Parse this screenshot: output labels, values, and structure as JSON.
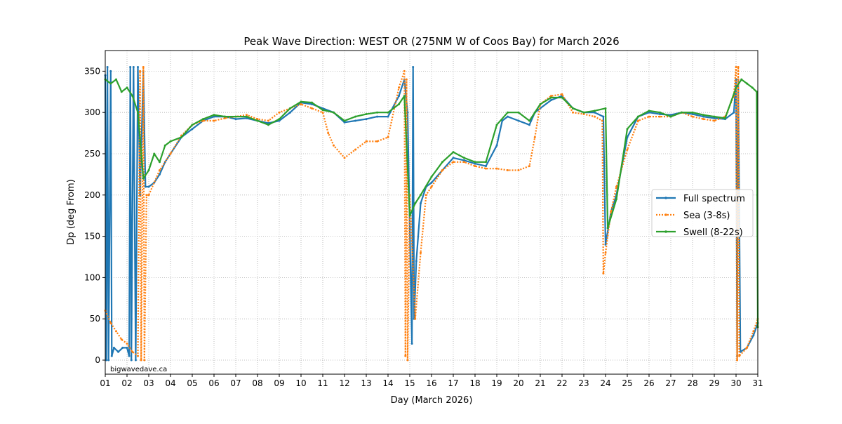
{
  "chart_data": {
    "type": "line",
    "title": "Peak Wave Direction: WEST OR (275NM W of Coos Bay) for March 2026",
    "xlabel": "Day (March 2026)",
    "ylabel": "Dp (deg From)",
    "xlim": [
      1,
      31
    ],
    "ylim": [
      -17,
      375
    ],
    "xticks": [
      "01",
      "02",
      "03",
      "04",
      "05",
      "06",
      "07",
      "08",
      "09",
      "10",
      "11",
      "12",
      "13",
      "14",
      "15",
      "16",
      "17",
      "18",
      "19",
      "20",
      "21",
      "22",
      "23",
      "24",
      "25",
      "26",
      "27",
      "28",
      "29",
      "30",
      "31"
    ],
    "yticks": [
      0,
      50,
      100,
      150,
      200,
      250,
      300,
      350
    ],
    "grid": true,
    "legend_position": "center-right",
    "watermark": "bigwavedave.ca",
    "series": [
      {
        "name": "Full spectrum",
        "color": "#1f77b4",
        "style": "solid",
        "points": [
          [
            1.0,
            345
          ],
          [
            1.05,
            0
          ],
          [
            1.1,
            355
          ],
          [
            1.15,
            0
          ],
          [
            1.25,
            350
          ],
          [
            1.3,
            5
          ],
          [
            1.4,
            15
          ],
          [
            1.6,
            10
          ],
          [
            1.8,
            15
          ],
          [
            2.0,
            15
          ],
          [
            2.1,
            5
          ],
          [
            2.15,
            355
          ],
          [
            2.2,
            0
          ],
          [
            2.3,
            355
          ],
          [
            2.4,
            0
          ],
          [
            2.5,
            355
          ],
          [
            2.6,
            200
          ],
          [
            2.75,
            350
          ],
          [
            2.85,
            210
          ],
          [
            3.0,
            210
          ],
          [
            3.25,
            215
          ],
          [
            3.5,
            225
          ],
          [
            3.75,
            240
          ],
          [
            4.0,
            250
          ],
          [
            4.5,
            270
          ],
          [
            5,
            280
          ],
          [
            5.5,
            290
          ],
          [
            6,
            295
          ],
          [
            6.5,
            295
          ],
          [
            7,
            292
          ],
          [
            7.5,
            293
          ],
          [
            8,
            290
          ],
          [
            8.5,
            287
          ],
          [
            9,
            290
          ],
          [
            9.5,
            300
          ],
          [
            10,
            312
          ],
          [
            10.5,
            310
          ],
          [
            11,
            305
          ],
          [
            11.5,
            300
          ],
          [
            12,
            288
          ],
          [
            12.5,
            290
          ],
          [
            13,
            292
          ],
          [
            13.5,
            295
          ],
          [
            14,
            295
          ],
          [
            14.5,
            320
          ],
          [
            14.75,
            340
          ],
          [
            14.9,
            300
          ],
          [
            15.0,
            160
          ],
          [
            15.1,
            20
          ],
          [
            15.15,
            355
          ],
          [
            15.2,
            50
          ],
          [
            15.3,
            120
          ],
          [
            15.5,
            190
          ],
          [
            15.75,
            210
          ],
          [
            16,
            215
          ],
          [
            16.5,
            230
          ],
          [
            17,
            245
          ],
          [
            17.5,
            242
          ],
          [
            18,
            238
          ],
          [
            18.5,
            235
          ],
          [
            19,
            260
          ],
          [
            19.25,
            290
          ],
          [
            19.5,
            295
          ],
          [
            20,
            290
          ],
          [
            20.5,
            285
          ],
          [
            20.75,
            300
          ],
          [
            21,
            305
          ],
          [
            21.5,
            315
          ],
          [
            22,
            320
          ],
          [
            22.5,
            305
          ],
          [
            23,
            300
          ],
          [
            23.5,
            300
          ],
          [
            23.9,
            295
          ],
          [
            24.0,
            140
          ],
          [
            24.25,
            180
          ],
          [
            24.5,
            200
          ],
          [
            25,
            270
          ],
          [
            25.5,
            295
          ],
          [
            26,
            300
          ],
          [
            26.5,
            298
          ],
          [
            27,
            297
          ],
          [
            27.5,
            300
          ],
          [
            28,
            298
          ],
          [
            28.5,
            295
          ],
          [
            29,
            293
          ],
          [
            29.5,
            292
          ],
          [
            29.9,
            300
          ],
          [
            30.0,
            340
          ],
          [
            30.05,
            5
          ],
          [
            30.1,
            340
          ],
          [
            30.2,
            10
          ],
          [
            30.5,
            15
          ],
          [
            30.8,
            30
          ],
          [
            31,
            45
          ]
        ]
      },
      {
        "name": "Sea (3-8s)",
        "color": "#ff7f0e",
        "style": "dotted",
        "points": [
          [
            1.0,
            60
          ],
          [
            1.25,
            45
          ],
          [
            1.5,
            35
          ],
          [
            1.75,
            25
          ],
          [
            2.0,
            20
          ],
          [
            2.25,
            10
          ],
          [
            2.5,
            5
          ],
          [
            2.6,
            350
          ],
          [
            2.65,
            0
          ],
          [
            2.75,
            355
          ],
          [
            2.8,
            0
          ],
          [
            2.9,
            200
          ],
          [
            3,
            200
          ],
          [
            3.5,
            230
          ],
          [
            4,
            250
          ],
          [
            4.5,
            272
          ],
          [
            5,
            285
          ],
          [
            5.5,
            290
          ],
          [
            6,
            290
          ],
          [
            6.5,
            293
          ],
          [
            7,
            295
          ],
          [
            7.5,
            297
          ],
          [
            8,
            292
          ],
          [
            8.5,
            290
          ],
          [
            9,
            300
          ],
          [
            9.5,
            305
          ],
          [
            10,
            310
          ],
          [
            10.5,
            305
          ],
          [
            11,
            300
          ],
          [
            11.25,
            275
          ],
          [
            11.5,
            260
          ],
          [
            12,
            245
          ],
          [
            12.5,
            255
          ],
          [
            13,
            265
          ],
          [
            13.5,
            265
          ],
          [
            14,
            270
          ],
          [
            14.5,
            330
          ],
          [
            14.75,
            350
          ],
          [
            14.8,
            5
          ],
          [
            14.85,
            340
          ],
          [
            14.9,
            0
          ],
          [
            15.0,
            200
          ],
          [
            15.25,
            50
          ],
          [
            15.5,
            130
          ],
          [
            15.75,
            200
          ],
          [
            16,
            210
          ],
          [
            16.5,
            230
          ],
          [
            17,
            240
          ],
          [
            17.5,
            240
          ],
          [
            18,
            235
          ],
          [
            18.5,
            232
          ],
          [
            19,
            232
          ],
          [
            19.5,
            230
          ],
          [
            20,
            230
          ],
          [
            20.5,
            235
          ],
          [
            20.75,
            270
          ],
          [
            21,
            310
          ],
          [
            21.5,
            320
          ],
          [
            22,
            322
          ],
          [
            22.5,
            300
          ],
          [
            23,
            298
          ],
          [
            23.5,
            295
          ],
          [
            23.85,
            290
          ],
          [
            23.9,
            105
          ],
          [
            24.0,
            130
          ],
          [
            24.25,
            180
          ],
          [
            24.5,
            210
          ],
          [
            25,
            255
          ],
          [
            25.5,
            290
          ],
          [
            26,
            295
          ],
          [
            26.5,
            295
          ],
          [
            27,
            295
          ],
          [
            27.5,
            300
          ],
          [
            28,
            295
          ],
          [
            28.5,
            292
          ],
          [
            29,
            290
          ],
          [
            29.5,
            295
          ],
          [
            29.9,
            320
          ],
          [
            30.0,
            355
          ],
          [
            30.05,
            0
          ],
          [
            30.1,
            355
          ],
          [
            30.15,
            5
          ],
          [
            30.5,
            15
          ],
          [
            30.8,
            35
          ],
          [
            31,
            50
          ]
        ]
      },
      {
        "name": "Swell (8-22s)",
        "color": "#2ca02c",
        "style": "solid",
        "points": [
          [
            1.0,
            340
          ],
          [
            1.25,
            335
          ],
          [
            1.5,
            340
          ],
          [
            1.75,
            325
          ],
          [
            2.0,
            330
          ],
          [
            2.25,
            320
          ],
          [
            2.5,
            300
          ],
          [
            2.75,
            220
          ],
          [
            3.0,
            230
          ],
          [
            3.25,
            250
          ],
          [
            3.5,
            240
          ],
          [
            3.75,
            260
          ],
          [
            4.0,
            265
          ],
          [
            4.5,
            270
          ],
          [
            5,
            285
          ],
          [
            5.5,
            292
          ],
          [
            6,
            297
          ],
          [
            6.5,
            295
          ],
          [
            7,
            295
          ],
          [
            7.5,
            295
          ],
          [
            8,
            290
          ],
          [
            8.5,
            285
          ],
          [
            9,
            292
          ],
          [
            9.5,
            305
          ],
          [
            10,
            313
          ],
          [
            10.5,
            312
          ],
          [
            11,
            303
          ],
          [
            11.5,
            300
          ],
          [
            12,
            290
          ],
          [
            12.5,
            295
          ],
          [
            13,
            298
          ],
          [
            13.5,
            300
          ],
          [
            14,
            300
          ],
          [
            14.5,
            310
          ],
          [
            14.75,
            320
          ],
          [
            15.0,
            175
          ],
          [
            15.25,
            190
          ],
          [
            15.5,
            200
          ],
          [
            16,
            222
          ],
          [
            16.5,
            240
          ],
          [
            17,
            252
          ],
          [
            17.5,
            245
          ],
          [
            18,
            240
          ],
          [
            18.5,
            240
          ],
          [
            19,
            285
          ],
          [
            19.5,
            300
          ],
          [
            20,
            300
          ],
          [
            20.5,
            290
          ],
          [
            20.75,
            300
          ],
          [
            21,
            310
          ],
          [
            21.5,
            318
          ],
          [
            22,
            318
          ],
          [
            22.5,
            305
          ],
          [
            23,
            300
          ],
          [
            23.5,
            302
          ],
          [
            24,
            305
          ],
          [
            24.1,
            160
          ],
          [
            24.5,
            195
          ],
          [
            25,
            280
          ],
          [
            25.5,
            295
          ],
          [
            26,
            302
          ],
          [
            26.5,
            300
          ],
          [
            27,
            295
          ],
          [
            27.5,
            300
          ],
          [
            28,
            300
          ],
          [
            28.5,
            297
          ],
          [
            29,
            295
          ],
          [
            29.5,
            293
          ],
          [
            30,
            330
          ],
          [
            30.25,
            340
          ],
          [
            30.5,
            335
          ],
          [
            30.75,
            330
          ],
          [
            30.95,
            325
          ],
          [
            31,
            40
          ]
        ]
      }
    ]
  }
}
